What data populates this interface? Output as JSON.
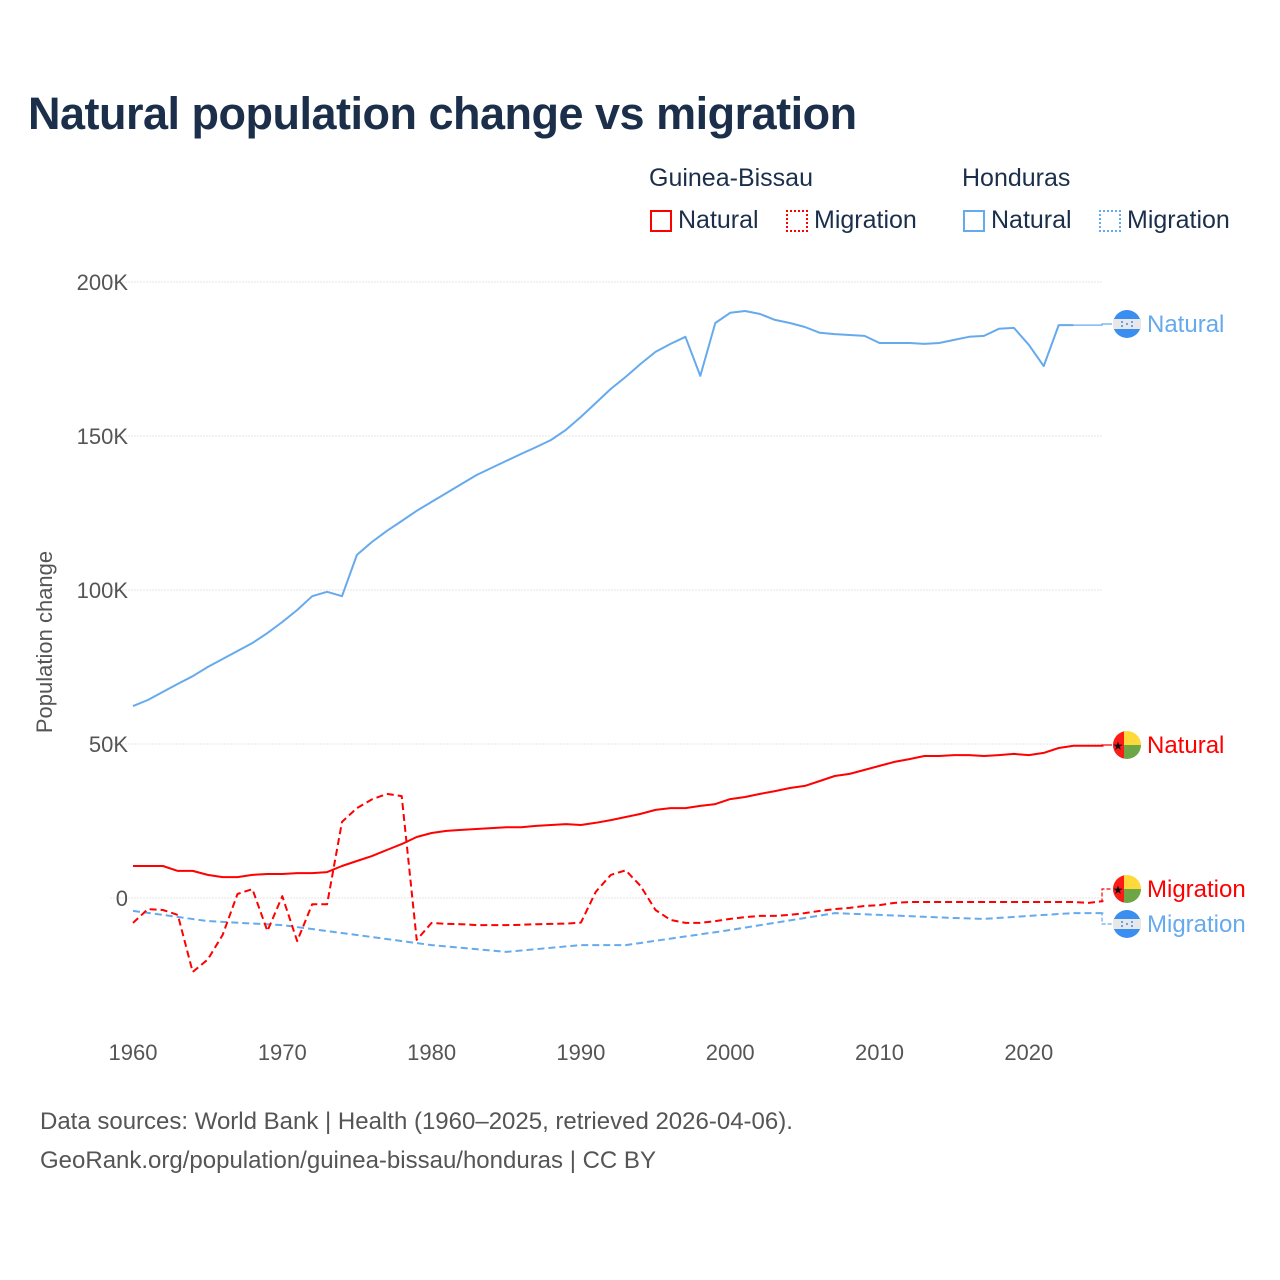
{
  "title": "Natural population change vs migration",
  "legend": {
    "groups": [
      {
        "name": "Guinea-Bissau",
        "items": [
          "Natural",
          "Migration"
        ]
      },
      {
        "name": "Honduras",
        "items": [
          "Natural",
          "Migration"
        ]
      }
    ]
  },
  "colors": {
    "guinea_bissau": "#ff0000",
    "honduras": "#66aaee",
    "grid": "#e2e2e2",
    "title": "#1b2f4b"
  },
  "footer": {
    "line1": "Data sources: World Bank | Health (1960–2025, retrieved 2026-04-06).",
    "line2": "GeoRank.org/population/guinea-bissau/honduras | CC BY"
  },
  "chart_data": {
    "type": "line",
    "title": "Natural population change vs migration",
    "xlabel": "",
    "ylabel": "Population change",
    "xlim": [
      1960,
      2025
    ],
    "ylim": [
      -35000,
      200000
    ],
    "x_ticks": [
      "1960",
      "1970",
      "1980",
      "1990",
      "2000",
      "2010",
      "2020"
    ],
    "y_ticks": [
      {
        "v": 0,
        "label": "0"
      },
      {
        "v": 50000,
        "label": "50K"
      },
      {
        "v": 100000,
        "label": "100K"
      },
      {
        "v": 150000,
        "label": "150K"
      },
      {
        "v": 200000,
        "label": "200K"
      }
    ],
    "grid": true,
    "legend_position": "top-right",
    "series": [
      {
        "name": "Honduras Natural",
        "country": "Honduras",
        "kind": "Natural",
        "style": "solid",
        "color": "#66aaee",
        "end_label": "Natural",
        "points": [
          [
            1960,
            62300
          ],
          [
            1961,
            64300
          ],
          [
            1962,
            66900
          ],
          [
            1963,
            69500
          ],
          [
            1964,
            72000
          ],
          [
            1965,
            75000
          ],
          [
            1966,
            77600
          ],
          [
            1967,
            80200
          ],
          [
            1968,
            82800
          ],
          [
            1969,
            86000
          ],
          [
            1970,
            89600
          ],
          [
            1971,
            93500
          ],
          [
            1972,
            98000
          ],
          [
            1973,
            99400
          ],
          [
            1974,
            98000
          ],
          [
            1975,
            111400
          ],
          [
            1976,
            115600
          ],
          [
            1977,
            119200
          ],
          [
            1978,
            122400
          ],
          [
            1979,
            125700
          ],
          [
            1980,
            128600
          ],
          [
            1981,
            131500
          ],
          [
            1982,
            134400
          ],
          [
            1983,
            137300
          ],
          [
            1984,
            139600
          ],
          [
            1985,
            141900
          ],
          [
            1986,
            144200
          ],
          [
            1987,
            146400
          ],
          [
            1988,
            148700
          ],
          [
            1989,
            152000
          ],
          [
            1990,
            156200
          ],
          [
            1991,
            160700
          ],
          [
            1992,
            165300
          ],
          [
            1993,
            169200
          ],
          [
            1994,
            173400
          ],
          [
            1995,
            177300
          ],
          [
            1996,
            179900
          ],
          [
            1997,
            182200
          ],
          [
            1998,
            169500
          ],
          [
            1999,
            186700
          ],
          [
            2000,
            190000
          ],
          [
            2001,
            190600
          ],
          [
            2002,
            189600
          ],
          [
            2003,
            187700
          ],
          [
            2004,
            186700
          ],
          [
            2005,
            185400
          ],
          [
            2006,
            183500
          ],
          [
            2007,
            183100
          ],
          [
            2008,
            182800
          ],
          [
            2009,
            182500
          ],
          [
            2010,
            180200
          ],
          [
            2011,
            180200
          ],
          [
            2012,
            180200
          ],
          [
            2013,
            179900
          ],
          [
            2014,
            180200
          ],
          [
            2015,
            181200
          ],
          [
            2016,
            182200
          ],
          [
            2017,
            182500
          ],
          [
            2018,
            184800
          ],
          [
            2019,
            185100
          ],
          [
            2020,
            179600
          ],
          [
            2021,
            172700
          ],
          [
            2022,
            186000
          ],
          [
            2023,
            186000
          ]
        ]
      },
      {
        "name": "Guinea-Bissau Natural",
        "country": "Guinea-Bissau",
        "kind": "Natural",
        "style": "solid",
        "color": "#ff0000",
        "end_label": "Natural",
        "points": [
          [
            1960,
            10400
          ],
          [
            1961,
            10400
          ],
          [
            1962,
            10400
          ],
          [
            1963,
            8800
          ],
          [
            1964,
            8800
          ],
          [
            1965,
            7500
          ],
          [
            1966,
            6800
          ],
          [
            1967,
            6800
          ],
          [
            1968,
            7500
          ],
          [
            1969,
            7800
          ],
          [
            1970,
            7800
          ],
          [
            1971,
            8100
          ],
          [
            1972,
            8100
          ],
          [
            1973,
            8400
          ],
          [
            1974,
            10400
          ],
          [
            1975,
            12000
          ],
          [
            1976,
            13600
          ],
          [
            1977,
            15600
          ],
          [
            1978,
            17500
          ],
          [
            1979,
            19800
          ],
          [
            1980,
            21100
          ],
          [
            1981,
            21800
          ],
          [
            1982,
            22100
          ],
          [
            1983,
            22400
          ],
          [
            1984,
            22700
          ],
          [
            1985,
            23000
          ],
          [
            1986,
            23000
          ],
          [
            1987,
            23400
          ],
          [
            1988,
            23700
          ],
          [
            1989,
            24000
          ],
          [
            1990,
            23700
          ],
          [
            1991,
            24400
          ],
          [
            1992,
            25300
          ],
          [
            1993,
            26300
          ],
          [
            1994,
            27300
          ],
          [
            1995,
            28600
          ],
          [
            1996,
            29200
          ],
          [
            1997,
            29200
          ],
          [
            1998,
            29900
          ],
          [
            1999,
            30500
          ],
          [
            2000,
            32100
          ],
          [
            2001,
            32800
          ],
          [
            2002,
            33800
          ],
          [
            2003,
            34700
          ],
          [
            2004,
            35700
          ],
          [
            2005,
            36400
          ],
          [
            2006,
            38000
          ],
          [
            2007,
            39600
          ],
          [
            2008,
            40300
          ],
          [
            2009,
            41600
          ],
          [
            2010,
            42900
          ],
          [
            2011,
            44200
          ],
          [
            2012,
            45100
          ],
          [
            2013,
            46100
          ],
          [
            2014,
            46100
          ],
          [
            2015,
            46400
          ],
          [
            2016,
            46400
          ],
          [
            2017,
            46100
          ],
          [
            2018,
            46400
          ],
          [
            2019,
            46800
          ],
          [
            2020,
            46400
          ],
          [
            2021,
            47100
          ],
          [
            2022,
            48700
          ],
          [
            2023,
            49400
          ],
          [
            2024,
            49400
          ],
          [
            2025,
            49400
          ]
        ]
      },
      {
        "name": "Guinea-Bissau Migration",
        "country": "Guinea-Bissau",
        "kind": "Migration",
        "style": "dashed",
        "color": "#ff0000",
        "end_label": "Migration",
        "points": [
          [
            1960,
            -8100
          ],
          [
            1961,
            -3600
          ],
          [
            1962,
            -3900
          ],
          [
            1963,
            -5500
          ],
          [
            1964,
            -24000
          ],
          [
            1965,
            -20000
          ],
          [
            1966,
            -12000
          ],
          [
            1967,
            1300
          ],
          [
            1968,
            2900
          ],
          [
            1969,
            -10700
          ],
          [
            1970,
            600
          ],
          [
            1971,
            -14000
          ],
          [
            1972,
            -2000
          ],
          [
            1973,
            -2000
          ],
          [
            1974,
            24700
          ],
          [
            1975,
            29200
          ],
          [
            1976,
            32000
          ],
          [
            1977,
            33800
          ],
          [
            1978,
            33100
          ],
          [
            1979,
            -13600
          ],
          [
            1980,
            -8100
          ],
          [
            1981,
            -8400
          ],
          [
            1982,
            -8500
          ],
          [
            1983,
            -8800
          ],
          [
            1984,
            -8800
          ],
          [
            1985,
            -8800
          ],
          [
            1986,
            -8700
          ],
          [
            1987,
            -8500
          ],
          [
            1988,
            -8400
          ],
          [
            1989,
            -8300
          ],
          [
            1990,
            -8000
          ],
          [
            1991,
            2000
          ],
          [
            1992,
            7500
          ],
          [
            1993,
            9000
          ],
          [
            1994,
            3900
          ],
          [
            1995,
            -3900
          ],
          [
            1996,
            -7100
          ],
          [
            1997,
            -8100
          ],
          [
            1998,
            -8100
          ],
          [
            1999,
            -7500
          ],
          [
            2000,
            -6800
          ],
          [
            2001,
            -6200
          ],
          [
            2002,
            -5800
          ],
          [
            2003,
            -5800
          ],
          [
            2004,
            -5500
          ],
          [
            2005,
            -4900
          ],
          [
            2006,
            -4200
          ],
          [
            2007,
            -3600
          ],
          [
            2008,
            -3200
          ],
          [
            2009,
            -2600
          ],
          [
            2010,
            -2300
          ],
          [
            2011,
            -1600
          ],
          [
            2012,
            -1300
          ],
          [
            2013,
            -1300
          ],
          [
            2014,
            -1300
          ],
          [
            2015,
            -1300
          ],
          [
            2016,
            -1300
          ],
          [
            2017,
            -1300
          ],
          [
            2018,
            -1300
          ],
          [
            2019,
            -1300
          ],
          [
            2020,
            -1300
          ],
          [
            2021,
            -1300
          ],
          [
            2022,
            -1300
          ],
          [
            2023,
            -1300
          ],
          [
            2024,
            -1600
          ],
          [
            2025,
            -1000
          ]
        ]
      },
      {
        "name": "Honduras Migration",
        "country": "Honduras",
        "kind": "Migration",
        "style": "dashed",
        "color": "#66aaee",
        "end_label": "Migration",
        "points": [
          [
            1960,
            -4200
          ],
          [
            1962,
            -5500
          ],
          [
            1965,
            -7500
          ],
          [
            1970,
            -8800
          ],
          [
            1975,
            -12000
          ],
          [
            1980,
            -15300
          ],
          [
            1985,
            -17500
          ],
          [
            1990,
            -15300
          ],
          [
            1993,
            -15300
          ],
          [
            2000,
            -10400
          ],
          [
            2005,
            -6500
          ],
          [
            2007,
            -4900
          ],
          [
            2010,
            -5500
          ],
          [
            2015,
            -6500
          ],
          [
            2017,
            -6800
          ],
          [
            2020,
            -5800
          ],
          [
            2023,
            -4900
          ],
          [
            2025,
            -4900
          ]
        ]
      }
    ]
  }
}
